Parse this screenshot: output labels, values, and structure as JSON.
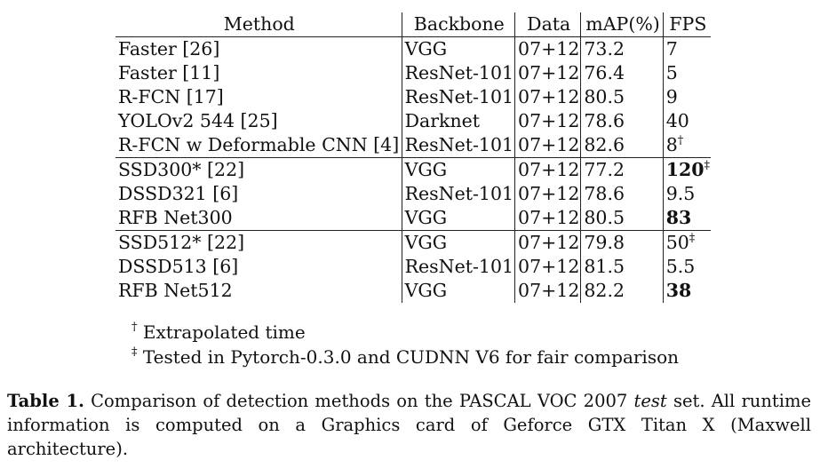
{
  "table": {
    "headers": [
      "Method",
      "Backbone",
      "Data",
      "mAP(%)",
      "FPS"
    ],
    "rows": [
      {
        "method": "Faster [26]",
        "backbone": "VGG",
        "data": "07+12",
        "map": "73.2",
        "fps": "7",
        "fps_mark": ""
      },
      {
        "method": "Faster [11]",
        "backbone": "ResNet-101",
        "data": "07+12",
        "map": "76.4",
        "fps": "5",
        "fps_mark": ""
      },
      {
        "method": "R-FCN [17]",
        "backbone": "ResNet-101",
        "data": "07+12",
        "map": "80.5",
        "fps": "9",
        "fps_mark": ""
      },
      {
        "method": "YOLOv2 544 [25]",
        "backbone": "Darknet",
        "data": "07+12",
        "map": "78.6",
        "fps": "40",
        "fps_mark": ""
      },
      {
        "method": "R-FCN w Deformable CNN [4]",
        "backbone": "ResNet-101",
        "data": "07+12",
        "map": "82.6",
        "fps": "8",
        "fps_mark": "†"
      },
      {
        "method": "SSD300* [22]",
        "backbone": "VGG",
        "data": "07+12",
        "map": "77.2",
        "fps": "120",
        "fps_mark": "‡"
      },
      {
        "method": "DSSD321 [6]",
        "backbone": "ResNet-101",
        "data": "07+12",
        "map": "78.6",
        "fps": "9.5",
        "fps_mark": ""
      },
      {
        "method": "RFB Net300",
        "backbone": "VGG",
        "data": "07+12",
        "map": "80.5",
        "fps": "83",
        "fps_mark": ""
      },
      {
        "method": "SSD512* [22]",
        "backbone": "VGG",
        "data": "07+12",
        "map": "79.8",
        "fps": "50",
        "fps_mark": "‡"
      },
      {
        "method": "DSSD513 [6]",
        "backbone": "ResNet-101",
        "data": "07+12",
        "map": "81.5",
        "fps": "5.5",
        "fps_mark": ""
      },
      {
        "method": "RFB Net512",
        "backbone": "VGG",
        "data": "07+12",
        "map": "82.2",
        "fps": "38",
        "fps_mark": ""
      }
    ]
  },
  "notes": [
    {
      "mark": "†",
      "text": "Extrapolated time"
    },
    {
      "mark": "‡",
      "text": "Tested in Pytorch-0.3.0 and CUDNN V6 for fair comparison"
    }
  ],
  "caption": {
    "label": "Table 1.",
    "text_before": "Comparison of detection methods on the PASCAL VOC 2007",
    "emph": "test",
    "text_after": "set. All runtime information is computed on a Graphics card of Geforce GTX Titan X (Maxwell architecture)."
  }
}
